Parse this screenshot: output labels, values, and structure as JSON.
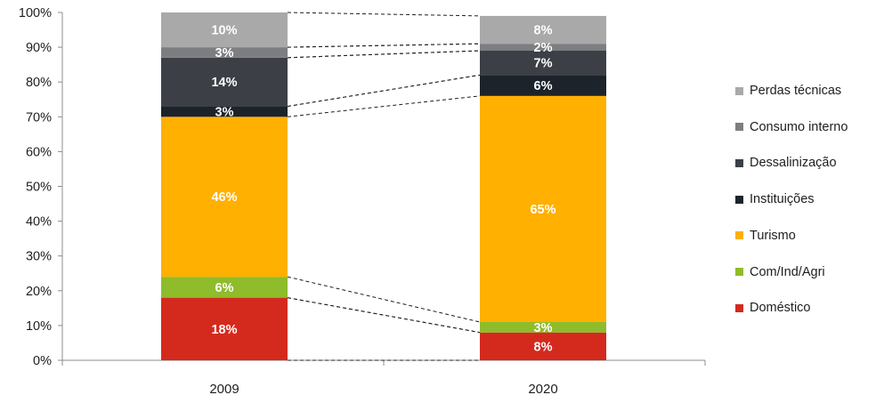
{
  "chart_data": {
    "type": "bar",
    "stacked": true,
    "categories": [
      "2009",
      "2020"
    ],
    "ylim": [
      0,
      100
    ],
    "yticks": [
      "0%",
      "10%",
      "20%",
      "30%",
      "40%",
      "50%",
      "60%",
      "70%",
      "80%",
      "90%",
      "100%"
    ],
    "series": [
      {
        "name": "Doméstico",
        "color": "#d42a1e",
        "values": [
          18,
          8
        ],
        "labels": [
          "18%",
          "8%"
        ]
      },
      {
        "name": "Com/Ind/Agri",
        "color": "#8fbc2b",
        "values": [
          6,
          3
        ],
        "labels": [
          "6%",
          "3%"
        ]
      },
      {
        "name": "Turismo",
        "color": "#ffb000",
        "values": [
          46,
          65
        ],
        "labels": [
          "46%",
          "65%"
        ]
      },
      {
        "name": "Instituições",
        "color": "#1c232b",
        "values": [
          3,
          6
        ],
        "labels": [
          "3%",
          "6%"
        ]
      },
      {
        "name": "Dessalinização",
        "color": "#3c4046",
        "values": [
          14,
          7
        ],
        "labels": [
          "14%",
          "7%"
        ]
      },
      {
        "name": "Consumo interno",
        "color": "#7c7e81",
        "values": [
          3,
          2
        ],
        "labels": [
          "3%",
          "2%"
        ]
      },
      {
        "name": "Perdas técnicas",
        "color": "#a9a9a9",
        "values": [
          10,
          8
        ],
        "labels": [
          "10%",
          "8%"
        ]
      }
    ],
    "legend_position": "right",
    "legend_order": [
      "Perdas técnicas",
      "Consumo interno",
      "Dessalinização",
      "Instituições",
      "Turismo",
      "Com/Ind/Agri",
      "Doméstico"
    ],
    "connector_lines": "dashed",
    "grid": false
  }
}
